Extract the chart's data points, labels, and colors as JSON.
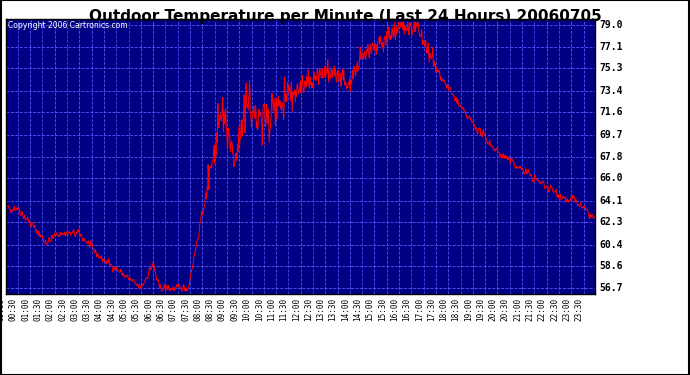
{
  "title": "Outdoor Temperature per Minute (Last 24 Hours) 20060705",
  "copyright_text": "Copyright 2006 Cartronics.com",
  "bg_color": "#000080",
  "line_color": "#ff0000",
  "text_color": "#000000",
  "copyright_color": "#ffffff",
  "grid_color": "#4444ff",
  "minor_grid_color": "#2222aa",
  "ytick_labels": [
    "56.7",
    "58.6",
    "60.4",
    "62.3",
    "64.1",
    "66.0",
    "67.8",
    "69.7",
    "71.6",
    "73.4",
    "75.3",
    "77.1",
    "79.0"
  ],
  "ytick_vals": [
    56.7,
    58.6,
    60.4,
    62.3,
    64.1,
    66.0,
    67.8,
    69.7,
    71.6,
    73.4,
    75.3,
    77.1,
    79.0
  ],
  "ylim": [
    56.2,
    79.5
  ],
  "fig_bg": "#ffffff",
  "title_fontsize": 11,
  "label_fontsize": 7
}
